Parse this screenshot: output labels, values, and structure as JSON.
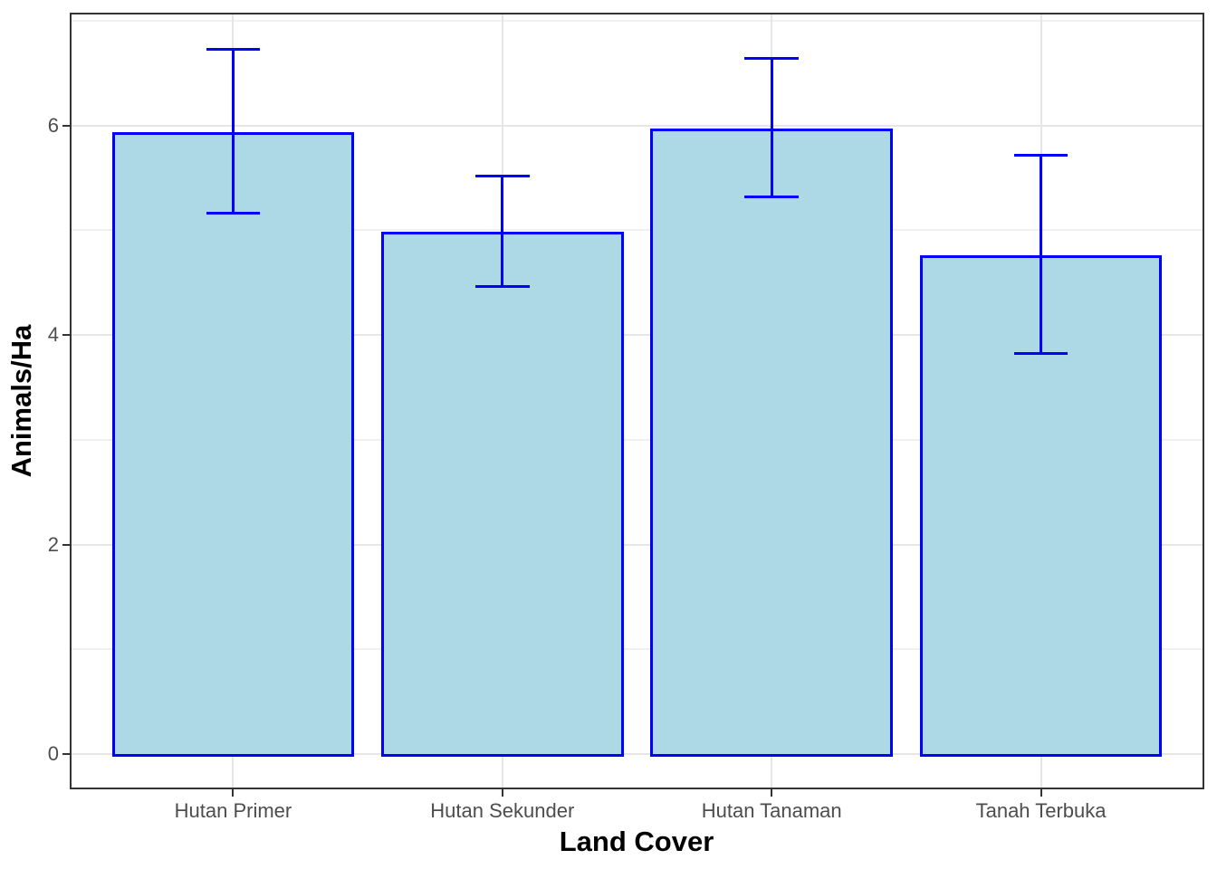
{
  "chart_data": {
    "type": "bar",
    "xlabel": "Land Cover",
    "ylabel": "Animals/Ha",
    "categories": [
      "Hutan Primer",
      "Hutan Sekunder",
      "Hutan Tanaman",
      "Tanah Terbuka"
    ],
    "values": [
      5.94,
      4.99,
      5.97,
      4.76
    ],
    "error_bars": {
      "lower": [
        5.16,
        4.46,
        5.32,
        3.82
      ],
      "upper": [
        6.73,
        5.52,
        6.64,
        5.72
      ]
    },
    "y_axis": {
      "major_ticks": [
        0,
        2,
        4,
        6
      ],
      "minor_gridlines": [
        1,
        3,
        5,
        7
      ],
      "ylim": [
        -0.32,
        7.06
      ]
    },
    "x_axis": {
      "bar_width_units": 0.9,
      "errorbar_cap_width_units": 0.2,
      "expansion_units": 0.6
    },
    "grid": true,
    "legend": false,
    "style": {
      "bar_fill": "#ADD8E6",
      "bar_border": "#0000FF",
      "error_color": "#0000FF",
      "panel_border": "#333333",
      "axis_tick_color": "#333333",
      "grid_major": "#E6E6E6",
      "grid_minor": "#F0F0F0",
      "tick_label_color": "#4D4D4D",
      "axis_title_color": "#000000",
      "background": "#FFFFFF"
    }
  }
}
